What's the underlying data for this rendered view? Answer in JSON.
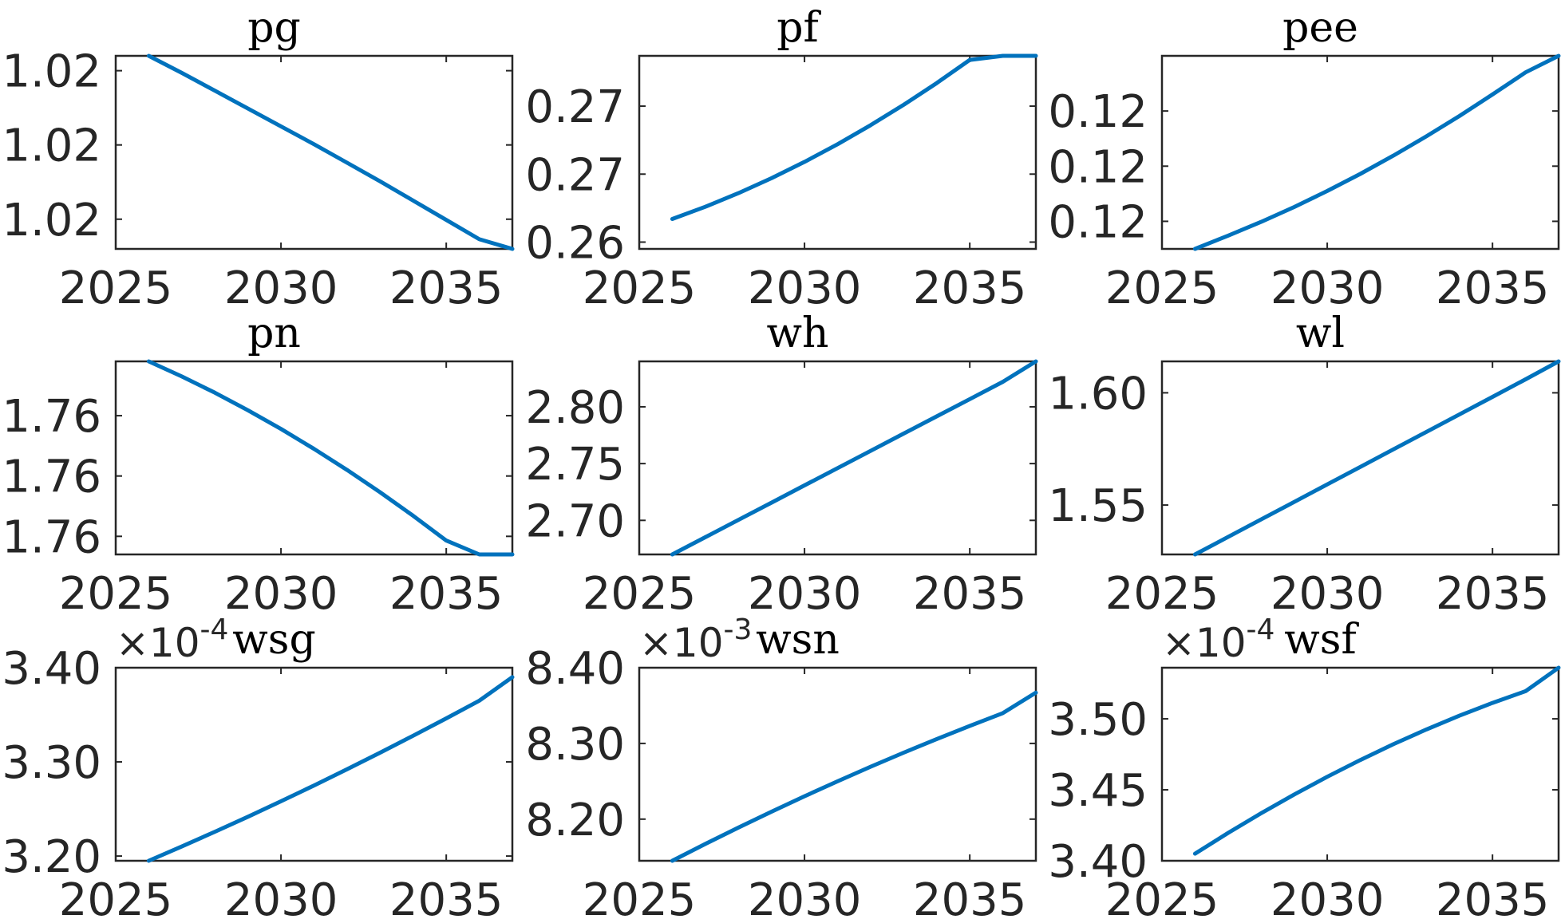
{
  "figure": {
    "line_color": "#0072BD",
    "axes_color": "#262626",
    "background": "#ffffff"
  },
  "chart_data": [
    {
      "type": "line",
      "title": "pg",
      "xlabel": "",
      "ylabel": "",
      "xlim": [
        2025,
        2037
      ],
      "xticks": [
        2025,
        2030,
        2035
      ],
      "xtick_labels": [
        "2025",
        "2030",
        "2035"
      ],
      "ylim": [
        1.0169,
        1.0195
      ],
      "yticks": [
        1.0173,
        1.0183,
        1.0193
      ],
      "ytick_labels": [
        "1.02",
        "1.02",
        "1.02"
      ],
      "exponent": "",
      "grid": false,
      "series": [
        {
          "x": [
            2026,
            2027,
            2028,
            2029,
            2030,
            2031,
            2032,
            2033,
            2034,
            2035,
            2036,
            2037
          ],
          "values": [
            1.0195,
            1.01927,
            1.01903,
            1.01879,
            1.01855,
            1.01831,
            1.01806,
            1.01781,
            1.01755,
            1.01729,
            1.01703,
            1.0169
          ]
        }
      ]
    },
    {
      "type": "line",
      "title": "pf",
      "xlabel": "",
      "ylabel": "",
      "xlim": [
        2025,
        2037
      ],
      "xticks": [
        2025,
        2030,
        2035
      ],
      "xtick_labels": [
        "2025",
        "2030",
        "2035"
      ],
      "ylim": [
        0.262,
        0.2762
      ],
      "yticks": [
        0.2625,
        0.2675,
        0.2725
      ],
      "ytick_labels": [
        "0.26",
        "0.27",
        "0.27"
      ],
      "exponent": "",
      "grid": false,
      "series": [
        {
          "x": [
            2026,
            2027,
            2028,
            2029,
            2030,
            2031,
            2032,
            2033,
            2034,
            2035,
            2036,
            2037
          ],
          "values": [
            0.2642,
            0.2651,
            0.2661,
            0.2672,
            0.2684,
            0.2697,
            0.2711,
            0.2726,
            0.2742,
            0.2759,
            0.2776,
            0.2762
          ]
        }
      ]
    },
    {
      "type": "line",
      "title": "pee",
      "xlabel": "",
      "ylabel": "",
      "xlim": [
        2025,
        2037
      ],
      "xticks": [
        2025,
        2030,
        2035
      ],
      "xtick_labels": [
        "2025",
        "2030",
        "2035"
      ],
      "ylim": [
        0.1183,
        0.1218
      ],
      "yticks": [
        0.1188,
        0.1198,
        0.1208
      ],
      "ytick_labels": [
        "0.12",
        "0.12",
        "0.12"
      ],
      "exponent": "",
      "grid": false,
      "series": [
        {
          "x": [
            2026,
            2027,
            2028,
            2029,
            2030,
            2031,
            2032,
            2033,
            2034,
            2035,
            2036,
            2037
          ],
          "values": [
            0.1183,
            0.11854,
            0.11879,
            0.11906,
            0.11935,
            0.11966,
            0.11999,
            0.12034,
            0.12071,
            0.1211,
            0.1215,
            0.1218
          ]
        }
      ]
    },
    {
      "type": "line",
      "title": "pn",
      "xlabel": "",
      "ylabel": "",
      "xlim": [
        2025,
        2037
      ],
      "xticks": [
        2025,
        2030,
        2035
      ],
      "xtick_labels": [
        "2025",
        "2030",
        "2035"
      ],
      "ylim": [
        1.7556,
        1.7588
      ],
      "yticks": [
        1.7559,
        1.7569,
        1.7579
      ],
      "ytick_labels": [
        "1.76",
        "1.76",
        "1.76"
      ],
      "exponent": "",
      "grid": false,
      "series": [
        {
          "x": [
            2026,
            2027,
            2028,
            2029,
            2030,
            2031,
            2032,
            2033,
            2034,
            2035,
            2036,
            2037
          ],
          "values": [
            1.7588,
            1.75855,
            1.75828,
            1.75799,
            1.75768,
            1.75735,
            1.757,
            1.75663,
            1.75624,
            1.75583,
            1.7554,
            1.7556
          ]
        }
      ]
    },
    {
      "type": "line",
      "title": "wh",
      "xlabel": "",
      "ylabel": "",
      "xlim": [
        2025,
        2037
      ],
      "xticks": [
        2025,
        2030,
        2035
      ],
      "xtick_labels": [
        "2025",
        "2030",
        "2035"
      ],
      "ylim": [
        2.67,
        2.84
      ],
      "yticks": [
        2.7,
        2.75,
        2.8
      ],
      "ytick_labels": [
        "2.70",
        "2.75",
        "2.80"
      ],
      "exponent": "",
      "grid": false,
      "series": [
        {
          "x": [
            2026,
            2027,
            2028,
            2029,
            2030,
            2031,
            2032,
            2033,
            2034,
            2035,
            2036,
            2037
          ],
          "values": [
            2.67,
            2.6852,
            2.7004,
            2.7156,
            2.7308,
            2.746,
            2.7612,
            2.7764,
            2.7916,
            2.8068,
            2.822,
            2.84
          ]
        }
      ]
    },
    {
      "type": "line",
      "title": "wl",
      "xlabel": "",
      "ylabel": "",
      "xlim": [
        2025,
        2037
      ],
      "xticks": [
        2025,
        2030,
        2035
      ],
      "xtick_labels": [
        "2025",
        "2030",
        "2035"
      ],
      "ylim": [
        1.528,
        1.614
      ],
      "yticks": [
        1.55,
        1.6
      ],
      "ytick_labels": [
        "1.55",
        "1.60"
      ],
      "exponent": "",
      "grid": false,
      "series": [
        {
          "x": [
            2026,
            2027,
            2028,
            2029,
            2030,
            2031,
            2032,
            2033,
            2034,
            2035,
            2036,
            2037
          ],
          "values": [
            1.528,
            1.5358,
            1.5436,
            1.5514,
            1.5592,
            1.567,
            1.5748,
            1.5826,
            1.5904,
            1.5982,
            1.606,
            1.614
          ]
        }
      ]
    },
    {
      "type": "line",
      "title": "wsg",
      "xlabel": "",
      "ylabel": "",
      "xlim": [
        2025,
        2037
      ],
      "xticks": [
        2025,
        2030,
        2035
      ],
      "xtick_labels": [
        "2025",
        "2030",
        "2035"
      ],
      "ylim": [
        3.195,
        3.4
      ],
      "yticks": [
        3.2,
        3.3,
        3.4
      ],
      "ytick_labels": [
        "3.20",
        "3.30",
        "3.40"
      ],
      "exponent": "×10-4",
      "grid": false,
      "series": [
        {
          "x": [
            2026,
            2027,
            2028,
            2029,
            2030,
            2031,
            2032,
            2033,
            2034,
            2035,
            2036,
            2037
          ],
          "values": [
            3.195,
            3.2102,
            3.2258,
            3.2418,
            3.2582,
            3.275,
            3.2922,
            3.3098,
            3.3278,
            3.3462,
            3.365,
            3.39
          ]
        }
      ]
    },
    {
      "type": "line",
      "title": "wsn",
      "xlabel": "",
      "ylabel": "",
      "xlim": [
        2025,
        2037
      ],
      "xticks": [
        2025,
        2030,
        2035
      ],
      "xtick_labels": [
        "2025",
        "2030",
        "2035"
      ],
      "ylim": [
        8.145,
        8.4
      ],
      "yticks": [
        8.2,
        8.3,
        8.4
      ],
      "ytick_labels": [
        "8.20",
        "8.30",
        "8.40"
      ],
      "exponent": "×10-3",
      "grid": false,
      "series": [
        {
          "x": [
            2026,
            2027,
            2028,
            2029,
            2030,
            2031,
            2032,
            2033,
            2034,
            2035,
            2036,
            2037
          ],
          "values": [
            8.145,
            8.1672,
            8.1888,
            8.2098,
            8.2302,
            8.25,
            8.2692,
            8.2878,
            8.3058,
            8.3232,
            8.34,
            8.367
          ]
        }
      ]
    },
    {
      "type": "line",
      "title": "wsf",
      "xlabel": "",
      "ylabel": "",
      "xlim": [
        2025,
        2037
      ],
      "xticks": [
        2025,
        2030,
        2035
      ],
      "xtick_labels": [
        "2025",
        "2030",
        "2035"
      ],
      "ylim": [
        3.4,
        3.536
      ],
      "yticks": [
        3.4,
        3.45,
        3.5
      ],
      "ytick_labels": [
        "3.40",
        "3.45",
        "3.50"
      ],
      "exponent": "×10-4",
      "grid": false,
      "series": [
        {
          "x": [
            2026,
            2027,
            2028,
            2029,
            2030,
            2031,
            2032,
            2033,
            2034,
            2035,
            2036,
            2037
          ],
          "values": [
            3.405,
            3.4196,
            3.4335,
            3.4467,
            3.4592,
            3.471,
            3.4821,
            3.4925,
            3.5022,
            3.5112,
            3.5195,
            3.536
          ]
        }
      ]
    }
  ]
}
